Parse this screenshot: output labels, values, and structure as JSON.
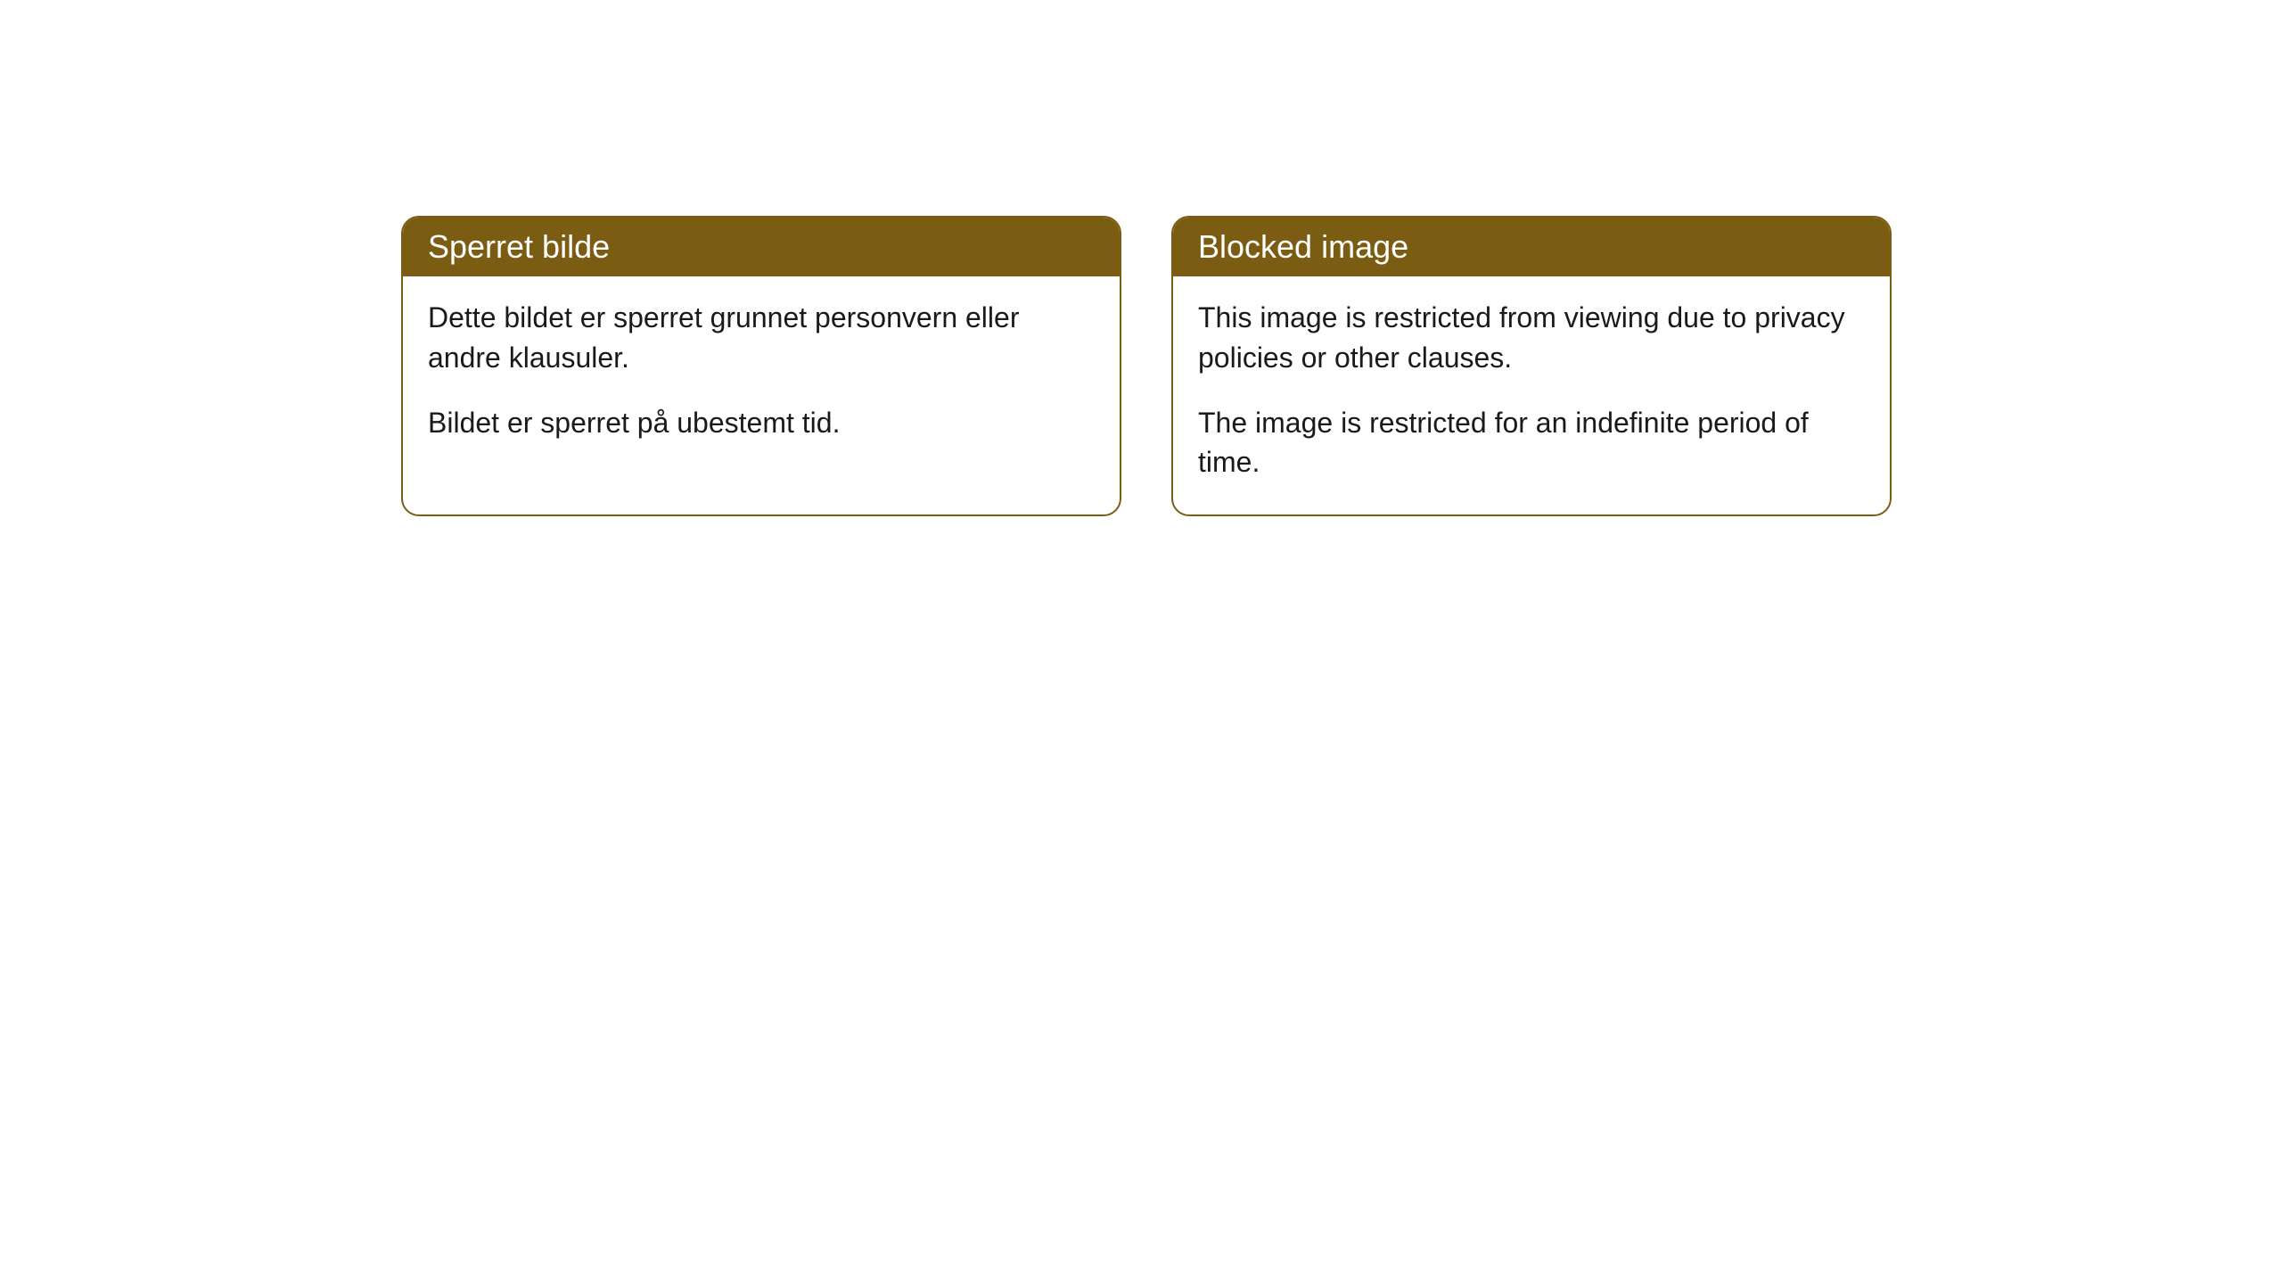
{
  "cards": [
    {
      "title": "Sperret bilde",
      "paragraph1": "Dette bildet er sperret grunnet personvern eller andre klausuler.",
      "paragraph2": "Bildet er sperret på ubestemt tid."
    },
    {
      "title": "Blocked image",
      "paragraph1": "This image is restricted from viewing due to privacy policies or other clauses.",
      "paragraph2": "The image is restricted for an indefinite period of time."
    }
  ],
  "style": {
    "header_bg": "#7a5c13",
    "header_text": "#ffffff",
    "border_color": "#7a5c13",
    "body_bg": "#ffffff",
    "body_text": "#1a1a1a",
    "border_radius": 20,
    "title_fontsize": 36,
    "body_fontsize": 32
  }
}
